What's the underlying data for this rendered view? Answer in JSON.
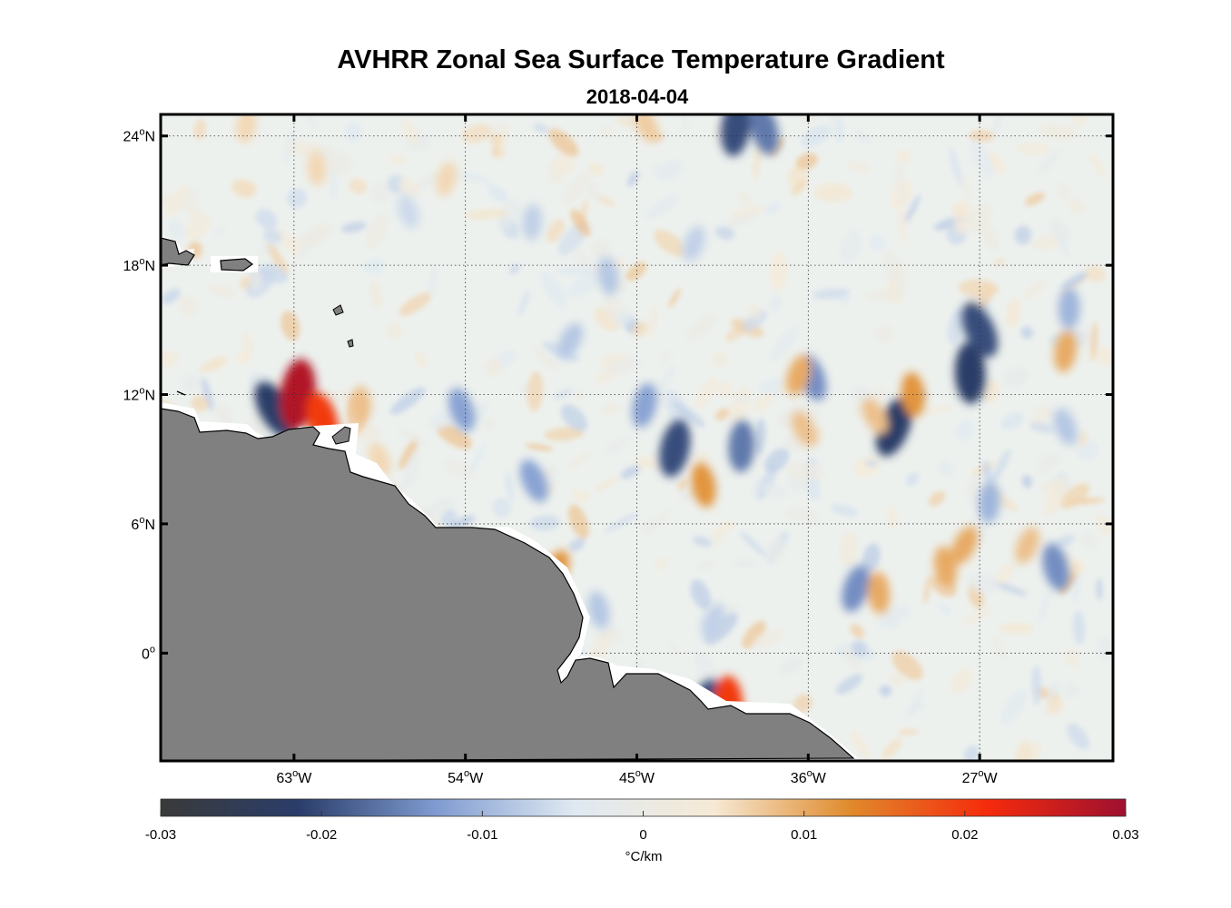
{
  "chart_data": {
    "type": "heatmap",
    "title": "AVHRR Zonal Sea Surface Temperature Gradient",
    "subtitle": "2018-04-04",
    "x_range_lon": [
      -70,
      -20
    ],
    "y_range_lat": [
      -5,
      25
    ],
    "x_ticks": [
      {
        "lon": -63,
        "label": "63",
        "hemi": "W"
      },
      {
        "lon": -54,
        "label": "54",
        "hemi": "W"
      },
      {
        "lon": -45,
        "label": "45",
        "hemi": "W"
      },
      {
        "lon": -36,
        "label": "36",
        "hemi": "W"
      },
      {
        "lon": -27,
        "label": "27",
        "hemi": "W"
      }
    ],
    "y_ticks": [
      {
        "lat": 24,
        "label": "24",
        "hemi": "N"
      },
      {
        "lat": 18,
        "label": "18",
        "hemi": "N"
      },
      {
        "lat": 12,
        "label": "12",
        "hemi": "N"
      },
      {
        "lat": 6,
        "label": "6",
        "hemi": "N"
      },
      {
        "lat": 0,
        "label": "0",
        "hemi": ""
      }
    ],
    "grid": true,
    "colorbar": {
      "range": [
        -0.03,
        0.03
      ],
      "ticks": [
        -0.03,
        -0.02,
        -0.01,
        0,
        0.01,
        0.02,
        0.03
      ],
      "tick_labels": [
        "-0.03",
        "-0.02",
        "-0.01",
        "0",
        "0.01",
        "0.02",
        "0.03"
      ],
      "label": "°C/km",
      "colors": [
        "#3a3a3a",
        "#2a3d6a",
        "#7f9bd0",
        "#dfe9f2",
        "#f6ead6",
        "#e08a2c",
        "#f52b0c",
        "#9e1030"
      ]
    },
    "land_color": "#808080",
    "features": [
      {
        "lon": -64.0,
        "lat": 11.3,
        "value": -0.022
      },
      {
        "lon": -62.8,
        "lat": 12.0,
        "value": 0.028
      },
      {
        "lon": -61.5,
        "lat": 10.8,
        "value": 0.02
      },
      {
        "lon": -31.5,
        "lat": 10.5,
        "value": -0.022
      },
      {
        "lon": -27.5,
        "lat": 13.0,
        "value": -0.022
      },
      {
        "lon": -27.0,
        "lat": 15.0,
        "value": -0.02
      },
      {
        "lon": -43.0,
        "lat": 9.5,
        "value": -0.02
      },
      {
        "lon": -41.5,
        "lat": 7.8,
        "value": 0.012
      },
      {
        "lon": -49.3,
        "lat": 3.8,
        "value": 0.012
      },
      {
        "lon": -39.5,
        "lat": 9.6,
        "value": -0.016
      },
      {
        "lon": -35.8,
        "lat": 12.8,
        "value": -0.014
      },
      {
        "lon": -36.5,
        "lat": 12.9,
        "value": 0.01
      },
      {
        "lon": -30.5,
        "lat": 12.0,
        "value": 0.012
      },
      {
        "lon": -32.5,
        "lat": 11.0,
        "value": 0.008
      },
      {
        "lon": -39.8,
        "lat": 24.4,
        "value": -0.02
      },
      {
        "lon": -38.3,
        "lat": 24.3,
        "value": -0.016
      },
      {
        "lon": -41.5,
        "lat": -2.5,
        "value": -0.02
      },
      {
        "lon": -40.2,
        "lat": -2.4,
        "value": 0.02
      },
      {
        "lon": -50.4,
        "lat": 8.0,
        "value": -0.012
      },
      {
        "lon": -44.6,
        "lat": 11.5,
        "value": -0.012
      },
      {
        "lon": -28.8,
        "lat": 4.0,
        "value": 0.01
      },
      {
        "lon": -27.8,
        "lat": 5.0,
        "value": 0.01
      },
      {
        "lon": -26.5,
        "lat": 7.0,
        "value": -0.01
      },
      {
        "lon": -54.2,
        "lat": 11.3,
        "value": -0.012
      },
      {
        "lon": -33.5,
        "lat": 3.0,
        "value": -0.014
      },
      {
        "lon": -32.3,
        "lat": 2.8,
        "value": 0.01
      },
      {
        "lon": -36.2,
        "lat": 10.4,
        "value": 0.008
      },
      {
        "lon": -22.5,
        "lat": 14.0,
        "value": 0.01
      },
      {
        "lon": -23.0,
        "lat": 4.0,
        "value": -0.014
      },
      {
        "lon": -24.5,
        "lat": 5.0,
        "value": 0.008
      },
      {
        "lon": -59.5,
        "lat": 11.5,
        "value": 0.008
      },
      {
        "lon": -58.5,
        "lat": 9.0,
        "value": 0.006
      },
      {
        "lon": -55.0,
        "lat": 22.0,
        "value": 0.006
      },
      {
        "lon": -46.5,
        "lat": 17.5,
        "value": -0.008
      },
      {
        "lon": -48.5,
        "lat": 14.5,
        "value": -0.008
      },
      {
        "lon": -50.5,
        "lat": 20.0,
        "value": -0.007
      },
      {
        "lon": -57.0,
        "lat": 20.5,
        "value": -0.006
      },
      {
        "lon": -42.0,
        "lat": 19.0,
        "value": -0.007
      },
      {
        "lon": -61.8,
        "lat": 22.5,
        "value": 0.006
      },
      {
        "lon": -44.5,
        "lat": 24.5,
        "value": 0.007
      },
      {
        "lon": -65.5,
        "lat": 24.5,
        "value": 0.006
      },
      {
        "lon": -47.0,
        "lat": 2.0,
        "value": -0.008
      },
      {
        "lon": -41.0,
        "lat": 1.5,
        "value": -0.007
      },
      {
        "lon": -22.3,
        "lat": 16.0,
        "value": -0.01
      },
      {
        "lon": -22.5,
        "lat": 10.5,
        "value": -0.008
      }
    ]
  }
}
